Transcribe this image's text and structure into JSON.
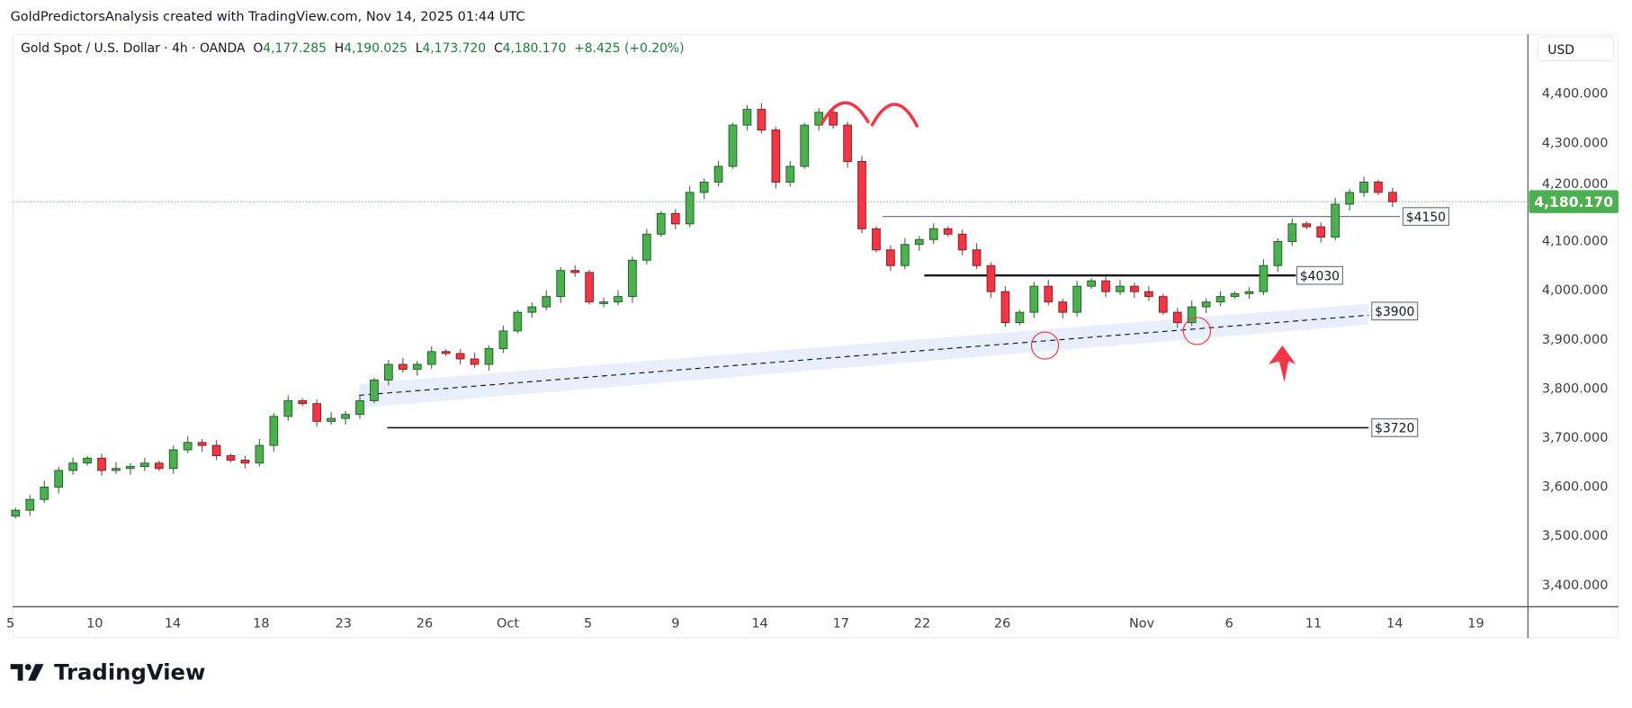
{
  "header": {
    "attribution": "GoldPredictorsAnalysis created with TradingView.com, Nov 14, 2025 01:44 UTC"
  },
  "legend": {
    "symbol": "Gold Spot / U.S. Dollar · 4h · OANDA",
    "open_label": "O",
    "open": "4,177.285",
    "high_label": "H",
    "high": "4,190.025",
    "low_label": "L",
    "low": "4,173.720",
    "close_label": "C",
    "close": "4,180.170",
    "change": "+8.425 (+0.20%)"
  },
  "currency_button": "USD",
  "brand": {
    "name": "TradingView"
  },
  "colors": {
    "up": "#4caf50",
    "down": "#f23645",
    "up_border": "#1b5e20",
    "down_border": "#7f1d1d",
    "price_tag": "#4caf50",
    "annotation": "#f23645",
    "band": "#e8eefc"
  },
  "chart_data": {
    "type": "candlestick",
    "title": "Gold Spot / U.S. Dollar 4h",
    "ylim": [
      3350,
      4480
    ],
    "y_ticks": [
      "4,400.000",
      "4,300.000",
      "4,200.000",
      "4,100.000",
      "4,000.000",
      "3,900.000",
      "3,800.000",
      "3,700.000",
      "3,600.000",
      "3,500.000",
      "3,400.000"
    ],
    "y_tick_values": [
      4400,
      4300,
      4200,
      4100,
      4000,
      3900,
      3800,
      3700,
      3600,
      3500,
      3400
    ],
    "x_ticks": [
      "5",
      "10",
      "14",
      "18",
      "23",
      "26",
      "Oct",
      "5",
      "9",
      "14",
      "17",
      "22",
      "26",
      "Nov",
      "6",
      "11",
      "14",
      "19"
    ],
    "first_open": 3540,
    "closes": [
      3552,
      3574,
      3599,
      3633,
      3648,
      3658,
      3633,
      3637,
      3641,
      3648,
      3637,
      3675,
      3690,
      3684,
      3663,
      3654,
      3648,
      3684,
      3743,
      3775,
      3769,
      3733,
      3739,
      3747,
      3775,
      3817,
      3849,
      3839,
      3849,
      3875,
      3871,
      3860,
      3849,
      3881,
      3917,
      3955,
      3966,
      3987,
      4040,
      4036,
      3976,
      3976,
      3987,
      4061,
      4114,
      4156,
      4135,
      4199,
      4220,
      4252,
      4336,
      4368,
      4326,
      4220,
      4252,
      4336,
      4362,
      4336,
      4262,
      4125,
      4082,
      4050,
      4093,
      4103,
      4125,
      4114,
      4082,
      4050,
      3997,
      3934,
      3955,
      4008,
      3976,
      3955,
      4008,
      4019,
      3997,
      4008,
      3997,
      3987,
      3955,
      3934,
      3966,
      3976,
      3987,
      3993,
      3997,
      4050,
      4099,
      4135,
      4129,
      4108,
      4175,
      4199,
      4220,
      4199,
      4180
    ],
    "wick": 10,
    "current_price": "4,180.170",
    "current_price_value": 4180.17,
    "levels": [
      {
        "label": "$4150",
        "value": 4150
      },
      {
        "label": "$4030",
        "value": 4030
      },
      {
        "label": "$3720",
        "value": 3720
      }
    ],
    "trendline": {
      "label": "$3900",
      "start_value": 3786,
      "end_value": 3949
    },
    "annotations": [
      "double-top arcs",
      "support touch circles",
      "up arrow"
    ]
  }
}
